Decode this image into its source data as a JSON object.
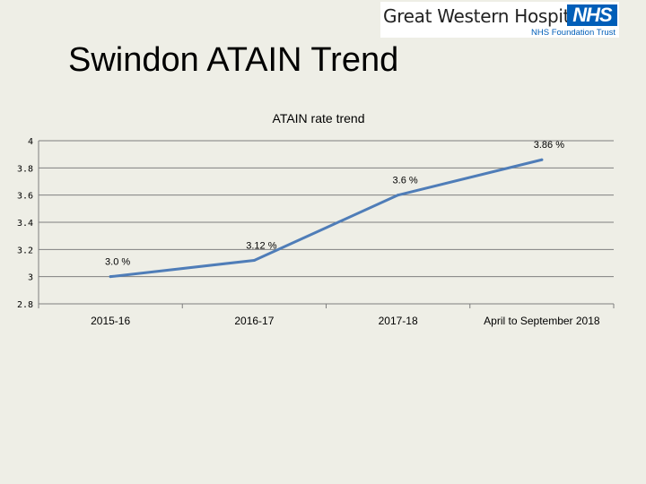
{
  "logo": {
    "name": "Great Western Hospitals",
    "badge": "NHS",
    "trust": "NHS Foundation Trust"
  },
  "slide": {
    "title": "Swindon ATAIN Trend"
  },
  "colors": {
    "background": "#eeeee6",
    "series_line": "#4f7db8",
    "gridline": "#7f7f7f",
    "nhs_blue": "#005eb8"
  },
  "chart_data": {
    "type": "line",
    "title": "ATAIN rate trend",
    "categories": [
      "2015-16",
      "2016-17",
      "2017-18",
      "April to September 2018"
    ],
    "series": [
      {
        "values": [
          3.0,
          3.12,
          3.6,
          3.86
        ],
        "data_labels": [
          "3.0 %",
          "3.12 %",
          "3.6 %",
          "3.86 %"
        ]
      }
    ],
    "ylim": [
      2.8,
      4
    ],
    "yticks": [
      "2.8",
      "3",
      "3.2",
      "3.4",
      "3.6",
      "3.8",
      "4"
    ],
    "xlabel": "",
    "ylabel": "",
    "grid": true,
    "legend": "none"
  }
}
